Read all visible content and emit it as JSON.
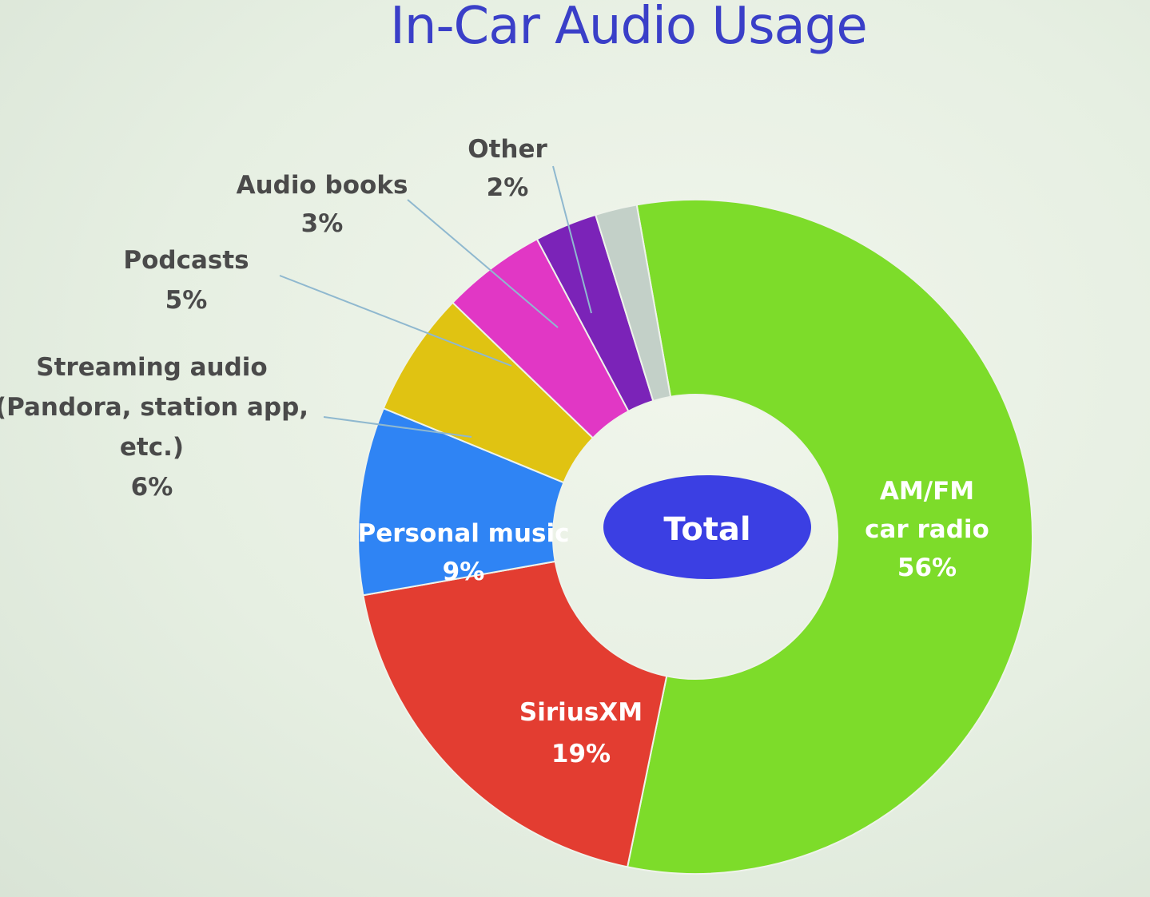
{
  "chart_data": {
    "type": "pie",
    "title": "In-Car Audio Usage",
    "center_label": "Total",
    "slices": [
      {
        "name": "AM/FM car radio",
        "lines": [
          "AM/FM",
          "car radio"
        ],
        "value": 56,
        "value_label": "56%",
        "color": "#7ddc2a",
        "label_position": "inside"
      },
      {
        "name": "SiriusXM",
        "lines": [
          "SiriusXM"
        ],
        "value": 19,
        "value_label": "19%",
        "color": "#e33d31",
        "label_position": "inside"
      },
      {
        "name": "Personal music",
        "lines": [
          "Personal music"
        ],
        "value": 9,
        "value_label": "9%",
        "color": "#2f84f4",
        "label_position": "inside"
      },
      {
        "name": "Streaming audio (Pandora, station app, etc.)",
        "lines": [
          "Streaming audio",
          "(Pandora, station app,",
          "etc.)"
        ],
        "value": 6,
        "value_label": "6%",
        "color": "#e0c312",
        "label_position": "outside"
      },
      {
        "name": "Podcasts",
        "lines": [
          "Podcasts"
        ],
        "value": 5,
        "value_label": "5%",
        "color": "#e137c5",
        "label_position": "outside"
      },
      {
        "name": "Audio books",
        "lines": [
          "Audio books"
        ],
        "value": 3,
        "value_label": "3%",
        "color": "#7b23b8",
        "label_position": "outside"
      },
      {
        "name": "Other",
        "lines": [
          "Other"
        ],
        "value": 2,
        "value_label": "2%",
        "color": "#c3d0c8",
        "label_position": "outside"
      }
    ],
    "colors": {
      "center_ellipse": "#3b3fe3",
      "leader_line": "#8fb8cf"
    }
  }
}
